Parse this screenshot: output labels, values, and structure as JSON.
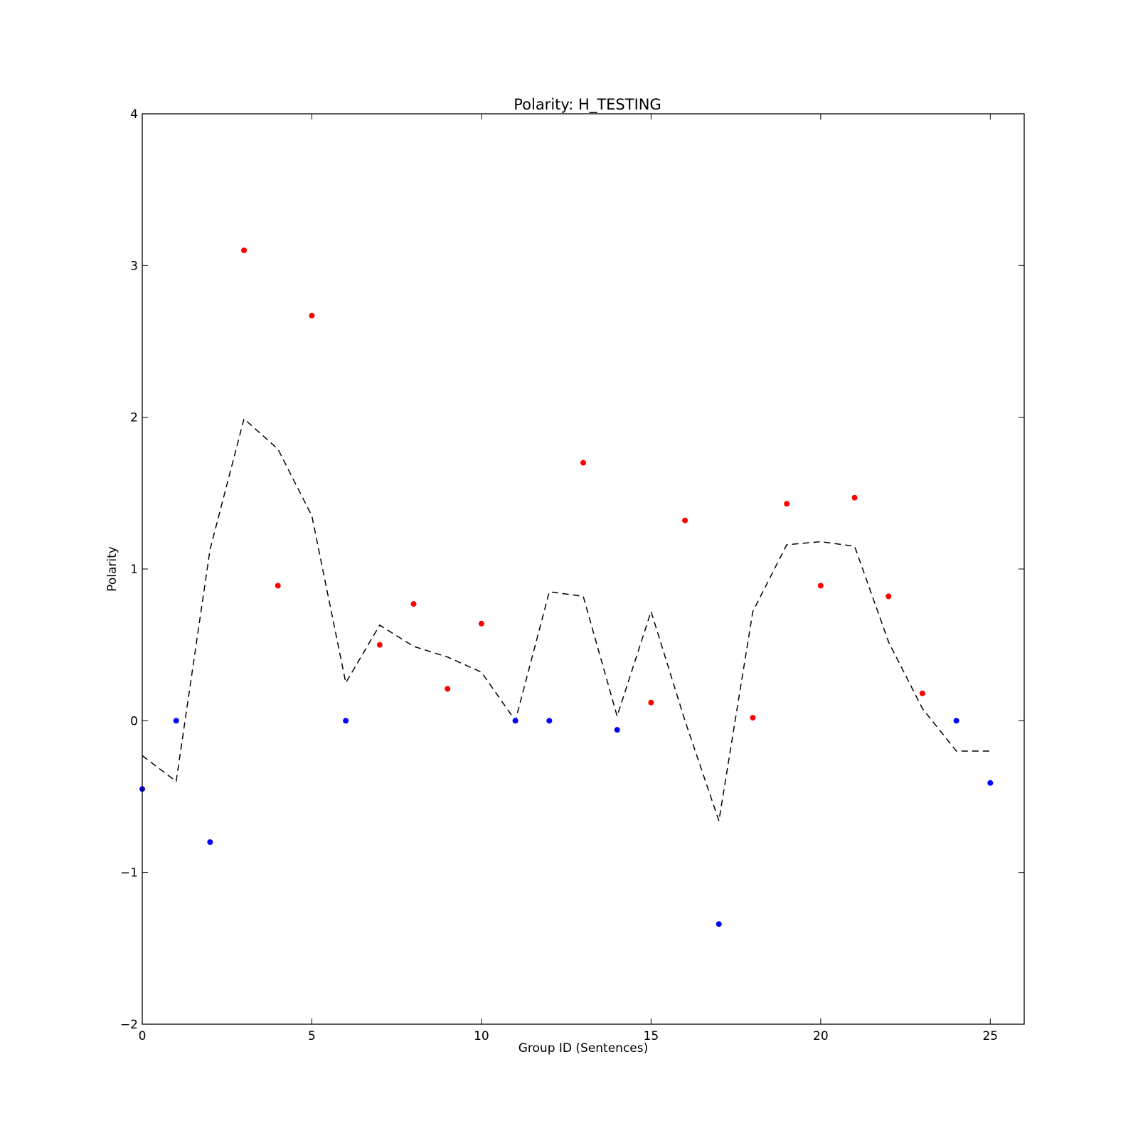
{
  "chart_data": {
    "type": "scatter",
    "title": "Polarity: H_TESTING",
    "xlabel": "Group ID (Sentences)",
    "ylabel": "Polarity",
    "xlim": [
      0,
      26
    ],
    "ylim": [
      -2,
      4
    ],
    "xticks": [
      0,
      5,
      10,
      15,
      20,
      25
    ],
    "yticks": [
      -2,
      -1,
      0,
      1,
      2,
      3,
      4
    ],
    "ytick_labels": [
      "−2",
      "−1",
      "0",
      "1",
      "2",
      "3",
      "4"
    ],
    "grid": false,
    "colors": {
      "positive": "#ff0000",
      "non_positive": "#0000ff",
      "line": "#000000"
    },
    "series": [
      {
        "kind": "points",
        "x": [
          0,
          1,
          2,
          3,
          4,
          5,
          6,
          7,
          8,
          9,
          10,
          11,
          12,
          13,
          14,
          15,
          16,
          17,
          18,
          19,
          20,
          21,
          22,
          23,
          24,
          25
        ],
        "y": [
          -0.45,
          0.0,
          -0.8,
          3.1,
          0.89,
          2.67,
          0.0,
          0.5,
          0.77,
          0.21,
          0.64,
          0.0,
          0.0,
          1.7,
          -0.06,
          0.12,
          1.32,
          -1.34,
          0.02,
          1.43,
          0.89,
          1.47,
          0.82,
          0.18,
          0.0,
          -0.41
        ]
      },
      {
        "kind": "line",
        "style": "dashed",
        "x": [
          0,
          1,
          2,
          3,
          4,
          5,
          6,
          7,
          8,
          9,
          10,
          11,
          12,
          13,
          14,
          15,
          16,
          17,
          18,
          19,
          20,
          21,
          22,
          23,
          24,
          25
        ],
        "y": [
          -0.23,
          -0.4,
          1.13,
          1.99,
          1.79,
          1.35,
          0.25,
          0.63,
          0.49,
          0.42,
          0.32,
          0.0,
          0.85,
          0.82,
          0.03,
          0.72,
          0.0,
          -0.66,
          0.72,
          1.16,
          1.18,
          1.15,
          0.52,
          0.08,
          -0.2,
          -0.2
        ]
      }
    ]
  }
}
